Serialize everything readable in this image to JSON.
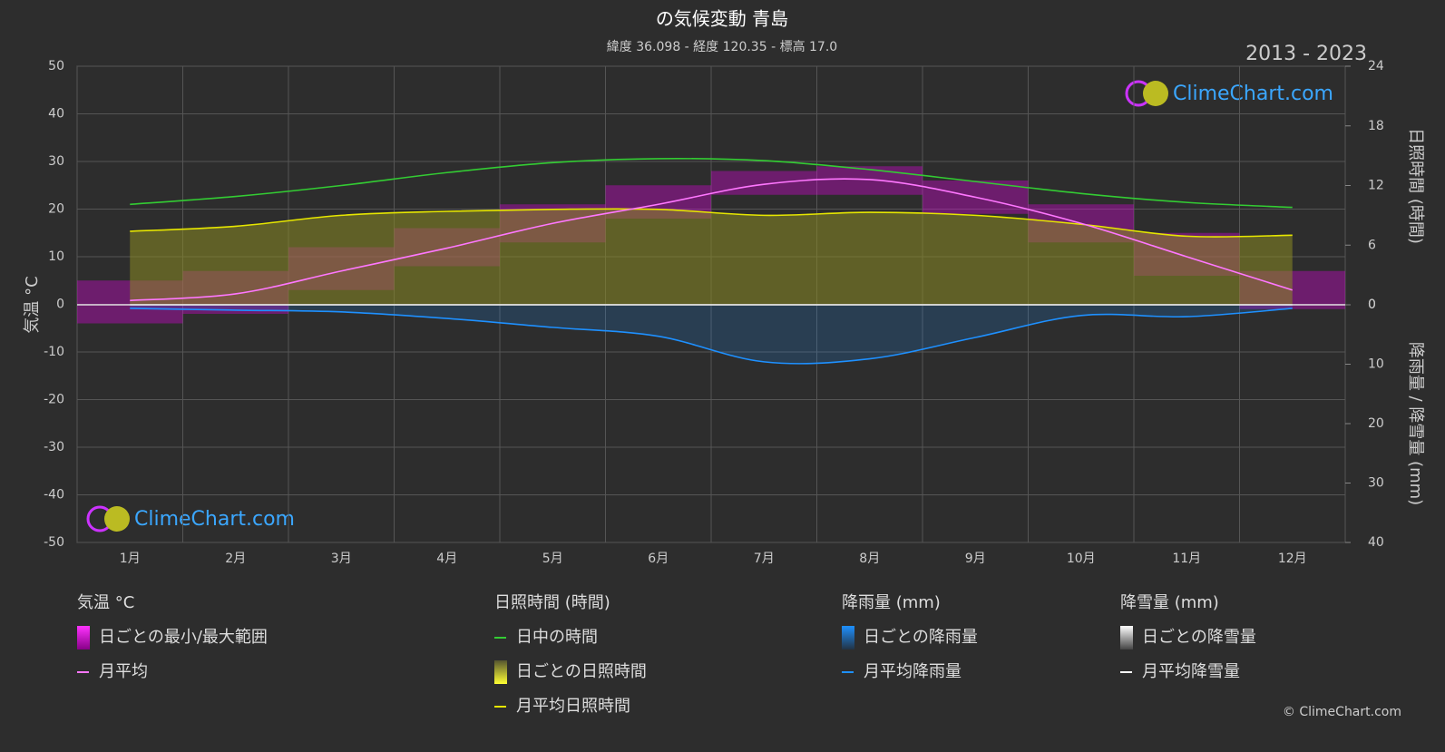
{
  "chart_data": {
    "type": "line",
    "title": "の気候変動 青島",
    "subtitle": "緯度 36.098 - 経度 120.35 - 標高 17.0",
    "period": "2013 - 2023",
    "watermark": "ClimeChart.com",
    "copyright": "© ClimeChart.com",
    "ylabel": "気温 °C",
    "y2label": "日照時間 (時間)",
    "y3label": "降雨量 / 降雪量 (mm)",
    "categories": [
      "1月",
      "2月",
      "3月",
      "4月",
      "5月",
      "6月",
      "7月",
      "8月",
      "9月",
      "10月",
      "11月",
      "12月"
    ],
    "ylim": [
      -50,
      50
    ],
    "yticks": [
      -50,
      -40,
      -30,
      -20,
      -10,
      0,
      10,
      20,
      30,
      40,
      50
    ],
    "y2lim": [
      0,
      24
    ],
    "y2ticks": [
      0,
      6,
      12,
      18,
      24
    ],
    "y3lim": [
      0,
      40
    ],
    "y3ticks": [
      0,
      10,
      20,
      30,
      40
    ],
    "grid": true,
    "groups": [
      {
        "title": "気温 °C",
        "series": [
          {
            "name": "日ごとの最小/最大範囲",
            "kind": "range",
            "color": "#e600e6",
            "min": [
              -4,
              -2,
              3,
              8,
              13,
              18,
              23,
              23,
              19,
              13,
              6,
              -1
            ],
            "max": [
              5,
              7,
              12,
              16,
              21,
              25,
              28,
              29,
              26,
              21,
              15,
              7
            ]
          },
          {
            "name": "月平均",
            "kind": "line",
            "color": "#ff77ff",
            "values": [
              0.8,
              2.2,
              7,
              11.8,
              17,
              21,
              25.2,
              26.2,
              22.5,
              17,
              10,
              3
            ]
          }
        ]
      },
      {
        "title": "日照時間 (時間)",
        "series": [
          {
            "name": "日中の時間",
            "kind": "line",
            "axis": "y2",
            "color": "#33cc33",
            "values": [
              10.1,
              10.9,
              12,
              13.3,
              14.3,
              14.7,
              14.5,
              13.6,
              12.4,
              11.2,
              10.3,
              9.8
            ]
          },
          {
            "name": "日ごとの日照時間",
            "kind": "swatch",
            "color": "#e6e600"
          },
          {
            "name": "月平均日照時間",
            "kind": "line",
            "axis": "y2",
            "color": "#e6e600",
            "values": [
              7.4,
              7.9,
              9.0,
              9.4,
              9.6,
              9.6,
              9.0,
              9.3,
              9.0,
              8.1,
              6.9,
              7.0
            ]
          }
        ]
      },
      {
        "title": "降雨量 (mm)",
        "series": [
          {
            "name": "日ごとの降雨量",
            "kind": "swatch",
            "color": "#1e90ff"
          },
          {
            "name": "月平均降雨量",
            "kind": "line",
            "axis": "y3",
            "color": "#1e90ff",
            "values": [
              0.6,
              0.9,
              1.2,
              2.3,
              3.8,
              5.3,
              9.6,
              9.1,
              5.5,
              1.8,
              2.0,
              0.6
            ]
          }
        ]
      },
      {
        "title": "降雪量 (mm)",
        "series": [
          {
            "name": "日ごとの降雪量",
            "kind": "swatch",
            "color": "#ffffff"
          },
          {
            "name": "月平均降雪量",
            "kind": "line",
            "axis": "y3",
            "color": "#ffffff",
            "values": [
              0,
              0,
              0,
              0,
              0,
              0,
              0,
              0,
              0,
              0,
              0,
              0
            ]
          }
        ]
      }
    ]
  }
}
